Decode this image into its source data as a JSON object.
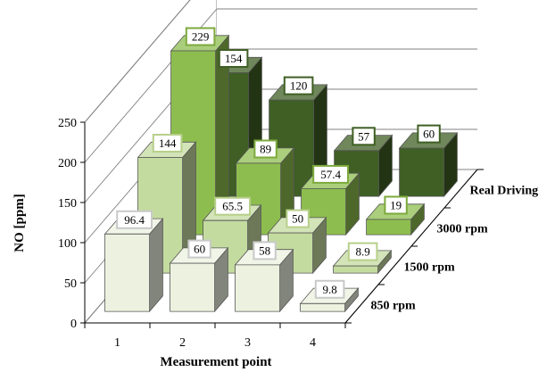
{
  "chart_data": {
    "type": "bar",
    "variant": "3d-column",
    "categories": [
      "1",
      "2",
      "3",
      "4"
    ],
    "xlabel": "Measurement point",
    "ylabel": "NO [ppm]",
    "ylim": [
      0,
      250
    ],
    "yticks": [
      0,
      50,
      100,
      150,
      200,
      250
    ],
    "grid": true,
    "series": [
      {
        "name": "850 rpm",
        "values": [
          96.4,
          60,
          58,
          9.8
        ],
        "color": "#ecf2df"
      },
      {
        "name": "1500 rpm",
        "values": [
          144,
          65.5,
          50,
          8.9
        ],
        "color": "#c4dba0"
      },
      {
        "name": "3000 rpm",
        "values": [
          229,
          89,
          57.4,
          19
        ],
        "color": "#8dbd4f"
      },
      {
        "name": "Real Driving",
        "values": [
          154,
          120,
          57,
          60
        ],
        "color": "#3f5f24"
      }
    ],
    "data_labels": [
      [
        "96.4",
        "60",
        "58",
        "9.8"
      ],
      [
        "144",
        "65.5",
        "50",
        "8.9"
      ],
      [
        "229",
        "89",
        "57.4",
        "19"
      ],
      [
        "154",
        "120",
        "57",
        "60"
      ]
    ],
    "label_border_colors": [
      "#c9c9c9",
      "#b7cf8a",
      "#7daa3c",
      "#3f5f24"
    ]
  }
}
